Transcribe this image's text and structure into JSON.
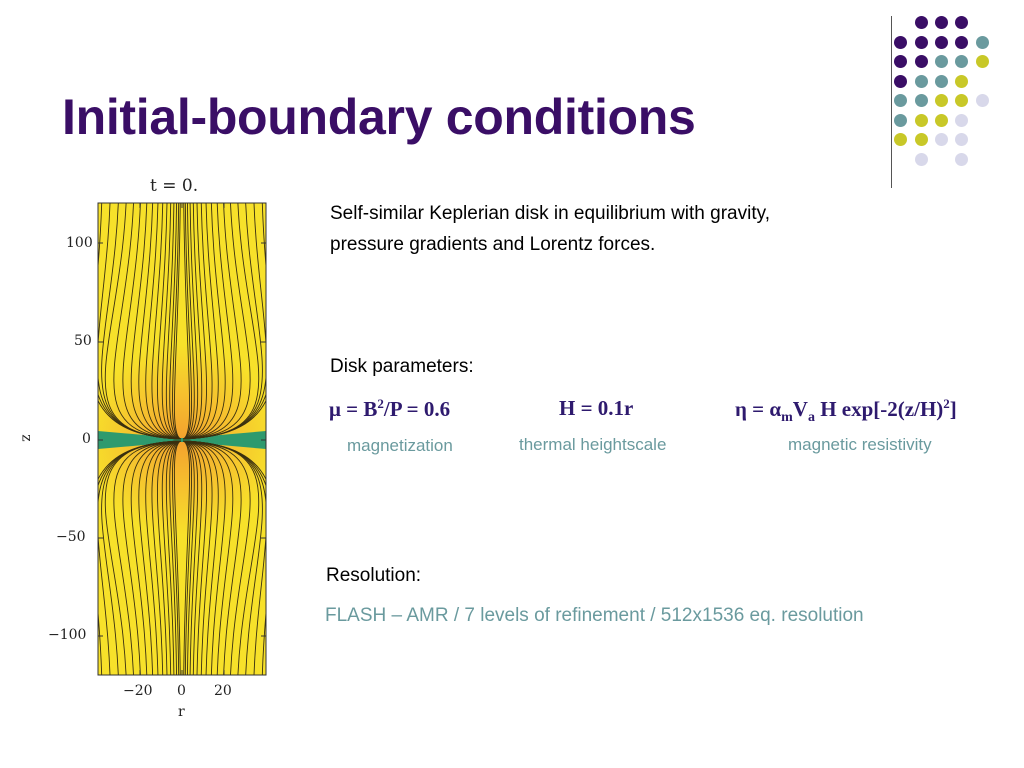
{
  "slide": {
    "title": "Initial-boundary conditions",
    "description_line1": "Self-similar Keplerian disk in equilibrium with gravity,",
    "description_line2": "pressure gradients and Lorentz forces.",
    "disk_parameters_label": "Disk parameters:",
    "parameters": [
      {
        "formula_html": "μ = B<sup>2</sup>/P = 0.6",
        "label": "magnetization"
      },
      {
        "formula_html": "H = 0.1r",
        "label": "thermal heightscale"
      },
      {
        "formula_html": "η = α<sub>m</sub>V<sub>a</sub> H exp[-2(z/H)<sup>2</sup>]",
        "label": "magnetic resistivity"
      }
    ],
    "resolution_label": "Resolution:",
    "resolution_detail": "FLASH – AMR / 7 levels of refinement / 512x1536 eq. resolution"
  },
  "colors": {
    "title": "#3a0e66",
    "accent_teal": "#6a9a9e",
    "dot_purple": "#3a0e66",
    "dot_teal": "#6a9a9e",
    "dot_yellow": "#c8c828",
    "dot_lavender": "#d8d8ea",
    "field_yellow": "#f7e12a",
    "disk_green": "#2e9a6e"
  },
  "figure": {
    "title": "t = 0.",
    "xlabel": "r",
    "ylabel": "z",
    "x_ticks": [
      "−20",
      "0",
      "20"
    ],
    "y_ticks": [
      "100",
      "50",
      "0",
      "−50",
      "−100"
    ],
    "xlim": [
      -40,
      40
    ],
    "ylim": [
      -120,
      120
    ]
  }
}
